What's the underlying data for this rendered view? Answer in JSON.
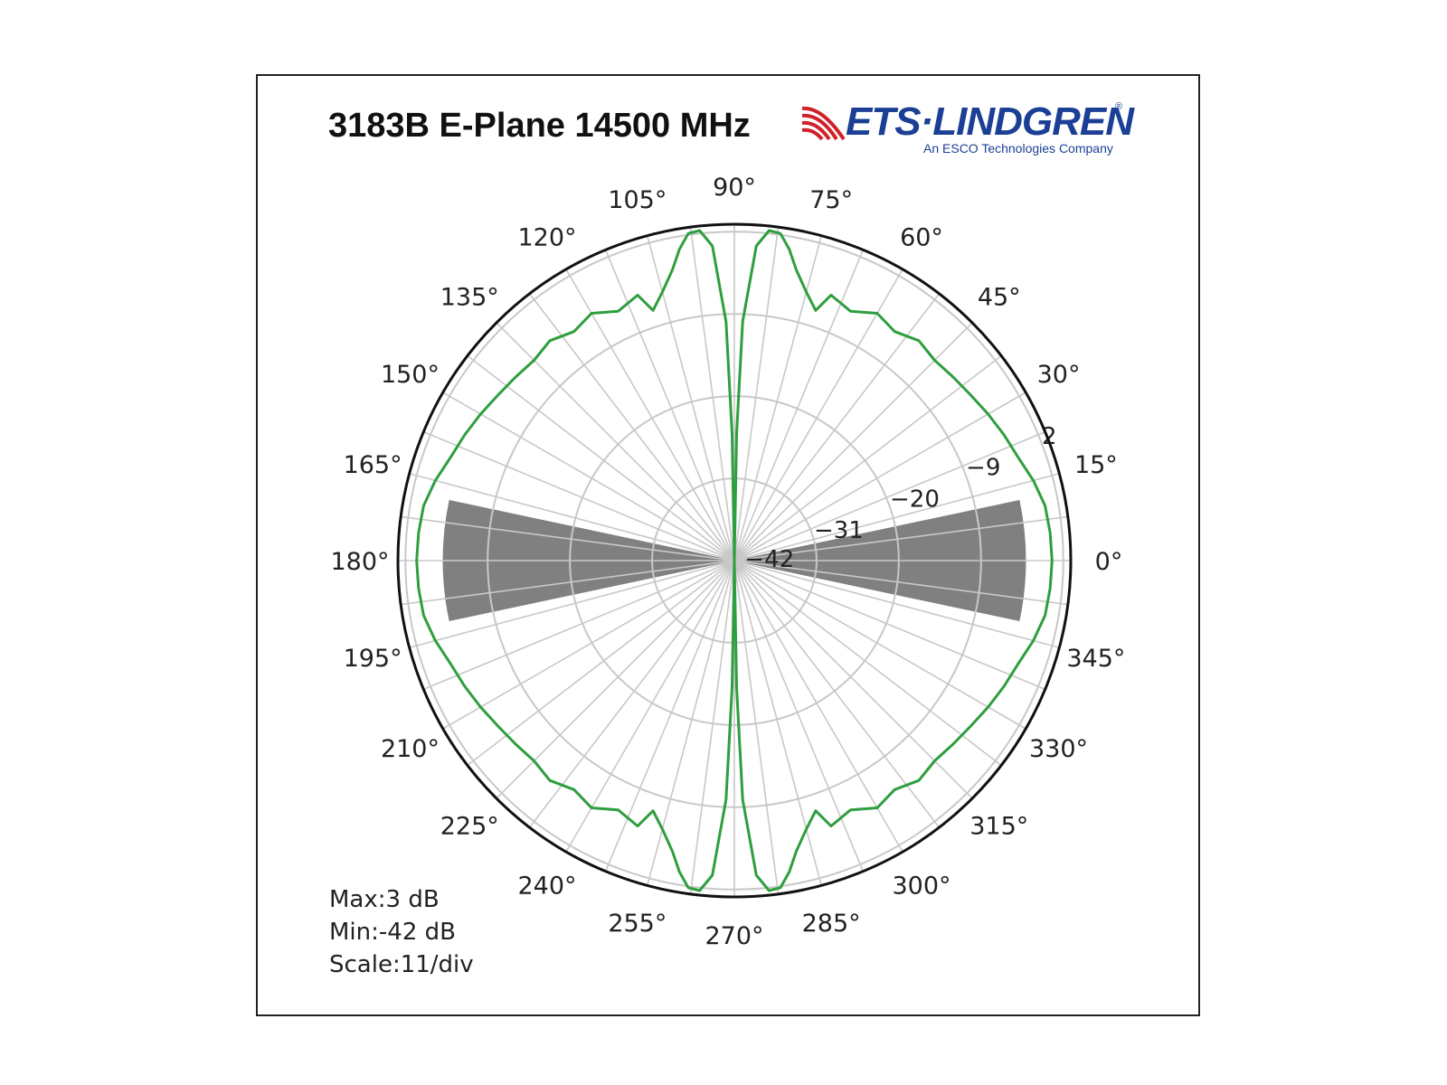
{
  "chart_data": {
    "type": "polar-line",
    "title": "3183B E-Plane 14500 MHz",
    "r_axis": {
      "min": -42,
      "max": 3,
      "tick_values": [
        -42,
        -31,
        -20,
        -9,
        2
      ],
      "tick_labels": [
        "−42",
        "−31",
        "−20",
        "−9",
        "2"
      ]
    },
    "angle_tick_labels": [
      "0°",
      "15°",
      "30°",
      "45°",
      "60°",
      "75°",
      "90°",
      "105°",
      "120°",
      "135°",
      "150°",
      "165°",
      "180°",
      "195°",
      "210°",
      "225°",
      "240°",
      "255°",
      "270°",
      "285°",
      "300°",
      "315°",
      "330°",
      "345°"
    ],
    "angle_tick_values": [
      0,
      15,
      30,
      45,
      60,
      75,
      90,
      105,
      120,
      135,
      150,
      165,
      180,
      195,
      210,
      225,
      240,
      255,
      270,
      285,
      300,
      315,
      330,
      345
    ],
    "radial_gridline_step_deg": 7.5,
    "shaded_sectors": [
      {
        "from_deg": -12,
        "to_deg": 12,
        "r_from": -42,
        "r_to": -3,
        "color": "#808080"
      },
      {
        "from_deg": 168,
        "to_deg": 192,
        "r_from": -42,
        "r_to": -3,
        "color": "#808080"
      }
    ],
    "series": [
      {
        "color": "#2e9e3e",
        "symmetric_about": "90-270 axis",
        "theta_deg": [
          0,
          5,
          10,
          15,
          20,
          25,
          30,
          35,
          40,
          45,
          50,
          55,
          60,
          65,
          70,
          72,
          75,
          78,
          80,
          82,
          84,
          86,
          88,
          89,
          89.5,
          90
        ],
        "r_db": [
          0.5,
          0.4,
          0.2,
          -0.6,
          -1.6,
          -2.2,
          -2.8,
          -3.4,
          -3.8,
          -4.1,
          -3.6,
          -4.6,
          -3.8,
          -5.2,
          -4.2,
          -6.8,
          -4.8,
          -2.2,
          0.3,
          2.2,
          2.4,
          0.2,
          -10,
          -25,
          -42,
          -42
        ]
      }
    ],
    "grid": true
  },
  "stats": {
    "max": "Max:3 dB",
    "min": "Min:-42 dB",
    "scale": "Scale:11/div"
  },
  "logo": {
    "brand": "ETS·LINDGREN",
    "tagline": "An ESCO Technologies Company"
  }
}
